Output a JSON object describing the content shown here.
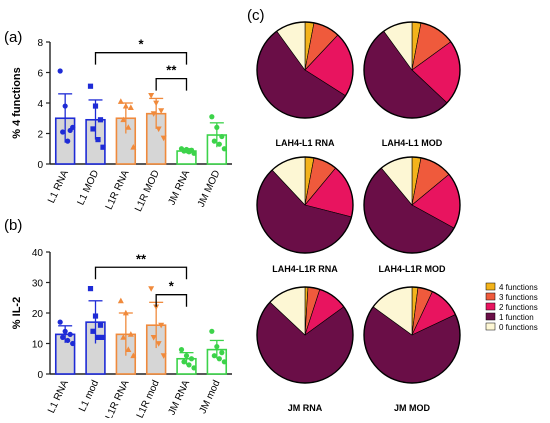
{
  "panel_letters": {
    "a": "(a)",
    "b": "(b)",
    "c": "(c)"
  },
  "chart_data": [
    {
      "type": "bar",
      "id": "a",
      "ylabel": "% 4 functions",
      "ylim": [
        0,
        8
      ],
      "yticks": [
        "0",
        "2",
        "4",
        "6",
        "8"
      ],
      "yticks_values": [
        0,
        2,
        4,
        6,
        8
      ],
      "categories": [
        "L1 RNA",
        "L1 MOD",
        "L1R RNA",
        "L1R MOD",
        "JM RNA",
        "JM MOD"
      ],
      "values": [
        3.0,
        2.9,
        3.0,
        3.3,
        0.85,
        1.9
      ],
      "errors": [
        1.6,
        1.3,
        1.0,
        1.0,
        0.15,
        0.8
      ],
      "colors": [
        "#1e2bd6",
        "#1e2bd6",
        "#f08a3c",
        "#f08a3c",
        "#3cd34a",
        "#3cd34a"
      ],
      "fills": [
        "#d6d6d6",
        "#d6d6d6",
        "#d6d6d6",
        "#d6d6d6",
        "#ffffff",
        "#ffffff"
      ],
      "points": [
        [
          6.1,
          3.8,
          2.2,
          2.1,
          1.5,
          2.4
        ],
        [
          5.1,
          3.8,
          2.9,
          2.3,
          1.6,
          1.1
        ],
        [
          4.1,
          3.8,
          3.7,
          2.9,
          2.4,
          1.1
        ],
        [
          4.5,
          4.0,
          3.5,
          3.3,
          2.3,
          1.7
        ],
        [
          1.0,
          0.95,
          0.9,
          0.85,
          0.8,
          0.7
        ],
        [
          3.1,
          2.4,
          1.8,
          1.5,
          1.3,
          1.0
        ]
      ],
      "markers": [
        "circle",
        "square",
        "triangle",
        "triangle-down",
        "circle",
        "circle"
      ],
      "significance": [
        {
          "from": 1,
          "to": 4,
          "label": "*",
          "y": 7.3
        },
        {
          "from": 3,
          "to": 4,
          "label": "**",
          "y": 5.6
        }
      ]
    },
    {
      "type": "bar",
      "id": "b",
      "ylabel": "% IL-2",
      "ylim": [
        0,
        40
      ],
      "yticks": [
        "0",
        "10",
        "20",
        "30",
        "40"
      ],
      "yticks_values": [
        0,
        10,
        20,
        30,
        40
      ],
      "categories": [
        "L1 RNA",
        "L1 mod",
        "L1R RNA",
        "L1R mod",
        "JM RNA",
        "JM mod"
      ],
      "values": [
        13.0,
        17.0,
        13.0,
        16.0,
        5.0,
        8.0
      ],
      "errors": [
        2.8,
        7.0,
        7.0,
        7.5,
        2.0,
        3.0
      ],
      "colors": [
        "#1e2bd6",
        "#1e2bd6",
        "#f08a3c",
        "#f08a3c",
        "#3cd34a",
        "#3cd34a"
      ],
      "fills": [
        "#d6d6d6",
        "#d6d6d6",
        "#d6d6d6",
        "#d6d6d6",
        "#ffffff",
        "#ffffff"
      ],
      "points": [
        [
          17.0,
          14.0,
          13.0,
          12.0,
          11.0,
          10.0
        ],
        [
          28.0,
          19.0,
          16.0,
          14.0,
          12.0,
          12.0
        ],
        [
          24.0,
          20.0,
          13.0,
          12.0,
          8.0,
          6.0
        ],
        [
          28.0,
          22.0,
          16.0,
          12.0,
          10.0,
          6.0
        ],
        [
          8.0,
          6.0,
          5.0,
          4.0,
          3.0,
          2.0
        ],
        [
          14.0,
          9.0,
          7.0,
          6.0,
          5.0,
          4.0
        ]
      ],
      "markers": [
        "circle",
        "square",
        "triangle",
        "triangle-down",
        "circle",
        "circle"
      ],
      "significance": [
        {
          "from": 1,
          "to": 4,
          "label": "**",
          "y": 35.0
        },
        {
          "from": 3,
          "to": 4,
          "label": "*",
          "y": 26.0
        }
      ]
    },
    {
      "type": "pie",
      "id": "c",
      "legend": [
        "4 functions",
        "3 functions",
        "2 functions",
        "1 function",
        "0 functions"
      ],
      "legend_colors": [
        "#f3b31b",
        "#ef5a3c",
        "#e8145f",
        "#6a0e47",
        "#fdf7d4"
      ],
      "legend_position": "right",
      "pies": [
        {
          "label": "LAH4-L1 RNA",
          "values": [
            3,
            9,
            22,
            56,
            10
          ]
        },
        {
          "label": "LAH4-L1 MOD",
          "values": [
            3,
            12,
            22,
            53,
            10
          ]
        },
        {
          "label": "LAH4-L1R RNA",
          "values": [
            3,
            8,
            18,
            59,
            12
          ]
        },
        {
          "label": "LAH4-L1R MOD",
          "values": [
            3,
            11,
            19,
            56,
            11
          ]
        },
        {
          "label": "JM RNA",
          "values": [
            1,
            4,
            10,
            72,
            13
          ]
        },
        {
          "label": "JM MOD",
          "values": [
            2,
            5,
            11,
            67,
            15
          ]
        }
      ]
    }
  ]
}
